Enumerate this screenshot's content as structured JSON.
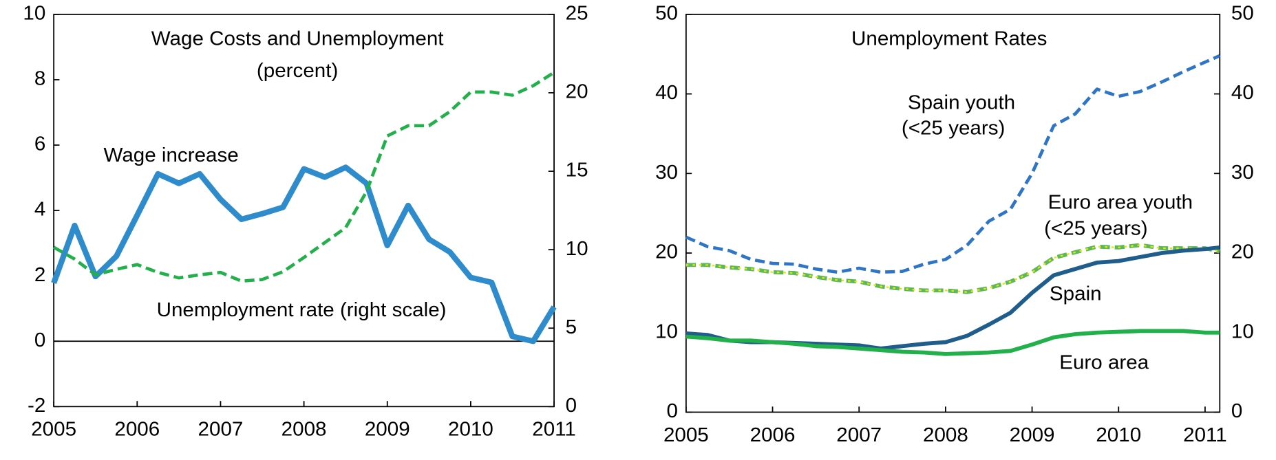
{
  "chart_data": [
    {
      "type": "line",
      "title": "Wage  Costs and Unemployment",
      "subtitle": "(percent)",
      "annotations": [
        "Wage  increase",
        "Unemployment  rate (right scale)"
      ],
      "xlim": [
        2005,
        2011
      ],
      "xticks": [
        2005,
        2006,
        2007,
        2008,
        2009,
        2010,
        2011
      ],
      "ylim": [
        -2,
        10
      ],
      "yticks": [
        -2,
        0,
        2,
        4,
        6,
        8,
        10
      ],
      "y2lim": [
        0,
        25
      ],
      "y2ticks": [
        0,
        5,
        10,
        15,
        20,
        25
      ],
      "zero_line": true,
      "x": [
        2005,
        2005.25,
        2005.5,
        2005.75,
        2006,
        2006.25,
        2006.5,
        2006.75,
        2007,
        2007.25,
        2007.5,
        2007.75,
        2008,
        2008.25,
        2008.5,
        2008.75,
        2009,
        2009.25,
        2009.5,
        2009.75,
        2010,
        2010.25,
        2010.5,
        2010.75,
        2011
      ],
      "series": [
        {
          "name": "Wage increase",
          "color": "#2e8bcc",
          "line_style": "solid",
          "width": 7,
          "values": [
            1.78,
            3.54,
            1.98,
            2.6,
            3.85,
            5.12,
            4.83,
            5.12,
            4.34,
            3.73,
            3.9,
            4.1,
            5.27,
            5.02,
            5.32,
            4.83,
            2.93,
            4.15,
            3.12,
            2.73,
            1.95,
            1.8,
            0.15,
            0.0,
            1.05
          ]
        },
        {
          "name": "Unemployment rate",
          "color": "#22b04b",
          "line_style": "dashed",
          "width": 4,
          "axis": "y2",
          "values": [
            10.15,
            9.4,
            8.4,
            8.75,
            9.05,
            8.55,
            8.2,
            8.4,
            8.55,
            8.0,
            8.1,
            8.6,
            9.5,
            10.45,
            11.4,
            13.7,
            17.25,
            17.9,
            17.9,
            18.8,
            20.05,
            20.05,
            19.85,
            20.45,
            21.3
          ]
        }
      ]
    },
    {
      "type": "line",
      "title": "Unemployment Rates",
      "annotations": [
        "Spain youth",
        "(<25 years)",
        "Euro area youth",
        "(<25 years)",
        "Spain",
        "Euro area"
      ],
      "xlim": [
        2005,
        2011.17
      ],
      "xticks": [
        2005,
        2006,
        2007,
        2008,
        2009,
        2010,
        2011
      ],
      "ylim": [
        0,
        50
      ],
      "yticks": [
        0,
        10,
        20,
        30,
        40,
        50
      ],
      "y2lim": [
        0,
        50
      ],
      "y2ticks": [
        0,
        10,
        20,
        30,
        40,
        50
      ],
      "x": [
        2005,
        2005.25,
        2005.5,
        2005.75,
        2006,
        2006.25,
        2006.5,
        2006.75,
        2007,
        2007.25,
        2007.5,
        2007.75,
        2008,
        2008.25,
        2008.5,
        2008.75,
        2009,
        2009.25,
        2009.5,
        2009.75,
        2010,
        2010.25,
        2010.5,
        2010.75,
        2011,
        2011.17
      ],
      "series": [
        {
          "name": "Spain youth",
          "color": "#2e75c7",
          "line_style": "dashed",
          "width": 4,
          "values": [
            22,
            20.8,
            20.3,
            19.2,
            18.7,
            18.6,
            18,
            17.6,
            18.1,
            17.6,
            17.7,
            18.6,
            19.2,
            21,
            24,
            25.5,
            30,
            36,
            37.5,
            40.6,
            39.7,
            40.3,
            41.5,
            42.8,
            44,
            44.8
          ]
        },
        {
          "name": "Euro area youth",
          "color": "#5cb85c",
          "line_style": "dashed",
          "overlay_color": "#e6e600",
          "width": 5,
          "values": [
            18.5,
            18.5,
            18.2,
            18.0,
            17.6,
            17.5,
            17.0,
            16.6,
            16.4,
            15.8,
            15.5,
            15.3,
            15.3,
            15.1,
            15.6,
            16.4,
            17.6,
            19.4,
            20.1,
            20.8,
            20.7,
            21,
            20.6,
            20.6,
            20.6,
            20.2
          ]
        },
        {
          "name": "Spain",
          "color": "#1f5d8c",
          "line_style": "solid",
          "width": 5,
          "values": [
            9.9,
            9.7,
            9,
            8.8,
            8.8,
            8.7,
            8.6,
            8.5,
            8.4,
            8,
            8.3,
            8.6,
            8.8,
            9.6,
            11,
            12.5,
            15,
            17.2,
            18,
            18.8,
            19,
            19.5,
            20,
            20.3,
            20.5,
            20.7
          ]
        },
        {
          "name": "Euro area",
          "color": "#22b04b",
          "line_style": "solid",
          "width": 5,
          "values": [
            9.5,
            9.3,
            9,
            9,
            8.8,
            8.6,
            8.3,
            8.2,
            8,
            7.8,
            7.6,
            7.5,
            7.3,
            7.4,
            7.5,
            7.7,
            8.5,
            9.4,
            9.8,
            10,
            10.1,
            10.2,
            10.2,
            10.2,
            10,
            10
          ]
        }
      ]
    }
  ]
}
